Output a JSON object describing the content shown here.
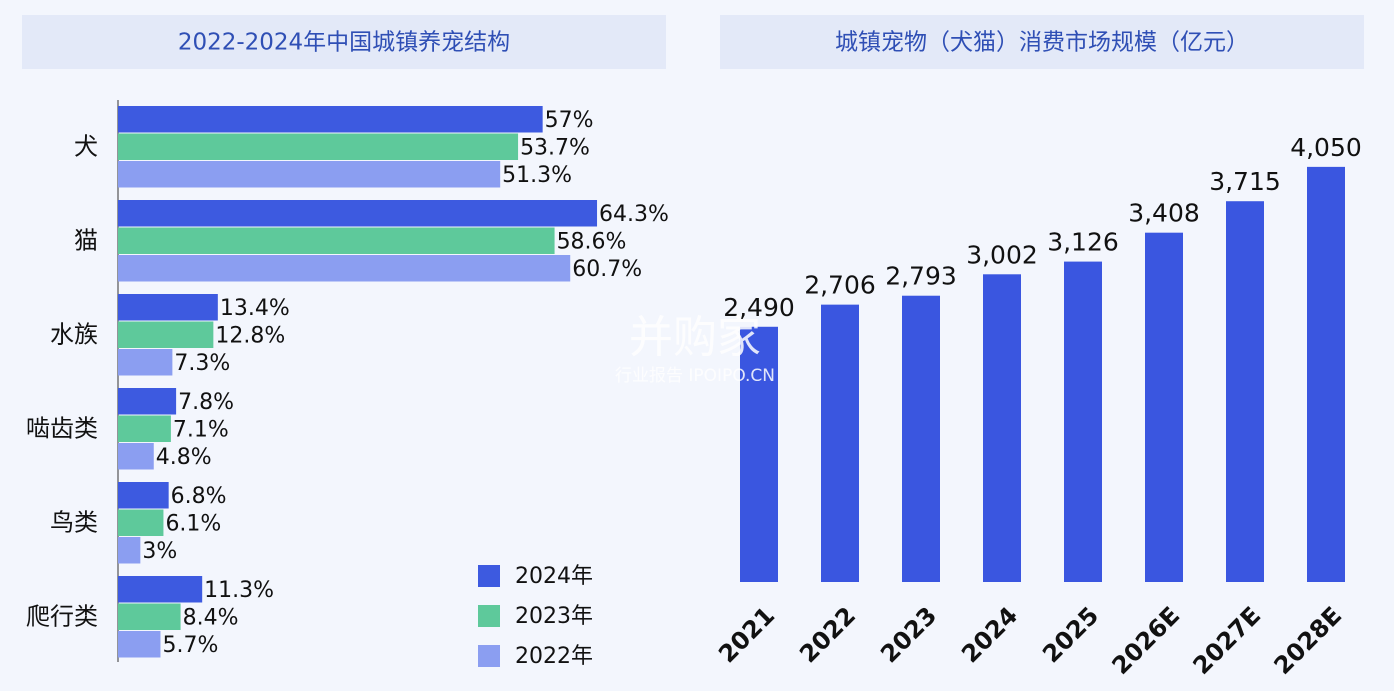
{
  "chart_data": [
    {
      "type": "hbar",
      "title": "2022-2024年中国城镇养宠结构",
      "categories": [
        "犬",
        "猫",
        "水族",
        "啮齿类",
        "鸟类",
        "爬行类"
      ],
      "series": [
        {
          "name": "2024年",
          "color": "#3d5ae0",
          "values": [
            57,
            64.3,
            13.4,
            7.8,
            6.8,
            11.3
          ],
          "value_labels": [
            "57%",
            "64.3%",
            "13.4%",
            "7.8%",
            "6.8%",
            "11.3%"
          ]
        },
        {
          "name": "2023年",
          "color": "#5ec99b",
          "values": [
            53.7,
            58.6,
            12.8,
            7.1,
            6.1,
            8.4
          ],
          "value_labels": [
            "53.7%",
            "58.6%",
            "12.8%",
            "7.1%",
            "6.1%",
            "8.4%"
          ]
        },
        {
          "name": "2022年",
          "color": "#8b9ef1",
          "values": [
            51.3,
            60.7,
            7.3,
            4.8,
            3,
            5.7
          ],
          "value_labels": [
            "51.3%",
            "60.7%",
            "7.3%",
            "4.8%",
            "3%",
            "5.7%"
          ]
        }
      ],
      "legend": "lower-right"
    },
    {
      "type": "bar",
      "title": "城镇宠物（犬猫）消费市场规模（亿元）",
      "categories": [
        "2021",
        "2022",
        "2023",
        "2024",
        "2025",
        "2026E",
        "2027E",
        "2028E"
      ],
      "values": [
        2490,
        2706,
        2793,
        3002,
        3126,
        3408,
        3715,
        4050
      ],
      "value_labels": [
        "2,490",
        "2,706",
        "2,793",
        "3,002",
        "3,126",
        "3,408",
        "3,715",
        "4,050"
      ],
      "color": "#3a56e0"
    }
  ],
  "watermark": {
    "brand": "并购家",
    "site": "行业报告 IPOIPO.CN"
  }
}
